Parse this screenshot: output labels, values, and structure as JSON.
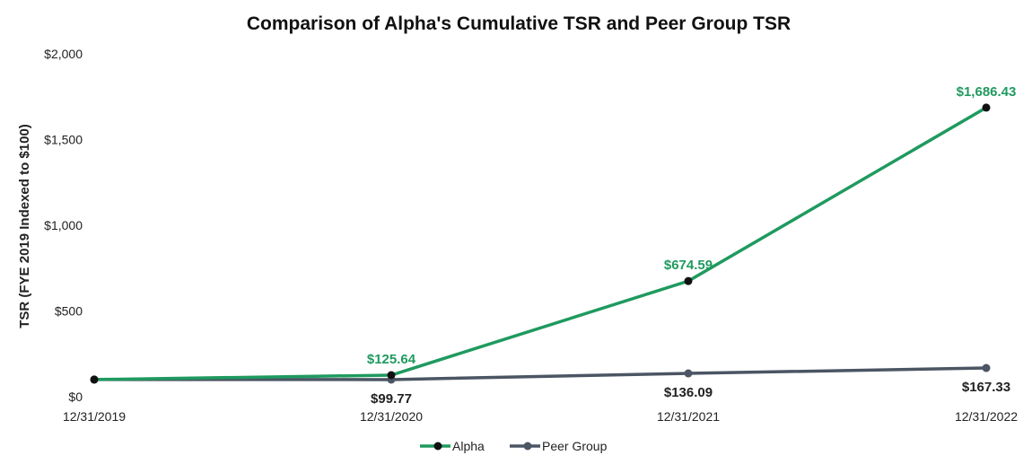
{
  "chart_data": {
    "type": "line",
    "title": "Comparison of Alpha's Cumulative TSR and Peer Group TSR",
    "xlabel": "",
    "ylabel": "TSR (FYE 2019 Indexed to $100)",
    "categories": [
      "12/31/2019",
      "12/31/2020",
      "12/31/2021",
      "12/31/2022"
    ],
    "ylim": [
      0,
      2000
    ],
    "yticks": [
      0,
      500,
      1000,
      1500,
      2000
    ],
    "ytick_labels": [
      "$0",
      "$500",
      "$1,000",
      "$1,500",
      "$2,000"
    ],
    "grid": false,
    "legend_position": "bottom",
    "series": [
      {
        "name": "Alpha",
        "values": [
          100,
          125.64,
          674.59,
          1686.43
        ],
        "labels": [
          "",
          "$125.64",
          "$674.59",
          "$1,686.43"
        ],
        "color": "#1f9a5f",
        "marker_color": "#111111"
      },
      {
        "name": "Peer Group",
        "values": [
          100,
          99.77,
          136.09,
          167.33
        ],
        "labels": [
          "",
          "$99.77",
          "$136.09",
          "$167.33"
        ],
        "color": "#4b5563",
        "marker_color": "#4b5563"
      }
    ]
  }
}
